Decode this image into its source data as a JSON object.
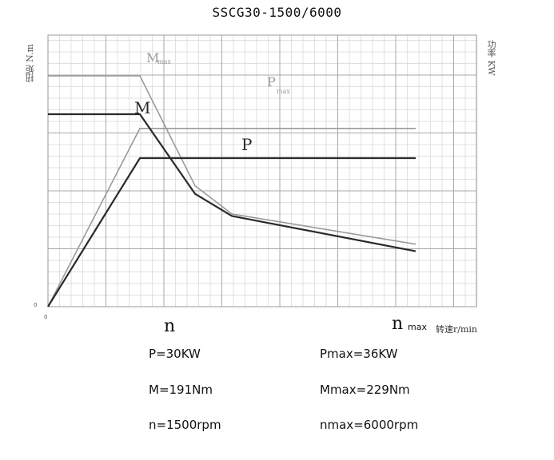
{
  "chart_data": {
    "type": "line",
    "title": "SSCG30-1500/6000",
    "ylabel_left": "扭矩 N.m",
    "ylabel_right": "功率 KW",
    "xlabel": "转速r/min",
    "x_ticks": [
      {
        "label": "n",
        "sub": "",
        "value": 1500
      },
      {
        "label": "n",
        "sub": "max",
        "value": 6000
      }
    ],
    "zero_labels": [
      "0",
      "0"
    ],
    "xlim": [
      0,
      6000
    ],
    "series": [
      {
        "name": "M",
        "color": "#2a2a2a",
        "points": [
          [
            0,
            191
          ],
          [
            1500,
            191
          ],
          [
            2400,
            112
          ],
          [
            3000,
            90
          ],
          [
            6000,
            55
          ]
        ]
      },
      {
        "name": "P",
        "color": "#2a2a2a",
        "points": [
          [
            0,
            0
          ],
          [
            1500,
            30
          ],
          [
            6000,
            30
          ]
        ]
      },
      {
        "name": "Mmax",
        "color": "#9a9a9a",
        "points": [
          [
            0,
            229
          ],
          [
            1500,
            229
          ],
          [
            2400,
            120
          ],
          [
            3000,
            92
          ],
          [
            6000,
            62
          ]
        ]
      },
      {
        "name": "Pmax",
        "color": "#9a9a9a",
        "points": [
          [
            0,
            0
          ],
          [
            1500,
            36
          ],
          [
            6000,
            36
          ]
        ]
      }
    ],
    "series_labels": {
      "M": "M",
      "P": "P",
      "Mmax": "M",
      "Mmax_sub": "max",
      "Pmax": "P",
      "Pmax_sub": "max"
    }
  },
  "specs": {
    "p": "P=30KW",
    "pmax": "Pmax=36KW",
    "m": "M=191Nm",
    "mmax": "Mmax=229Nm",
    "n": "n=1500rpm",
    "nmax": "nmax=6000rpm"
  }
}
